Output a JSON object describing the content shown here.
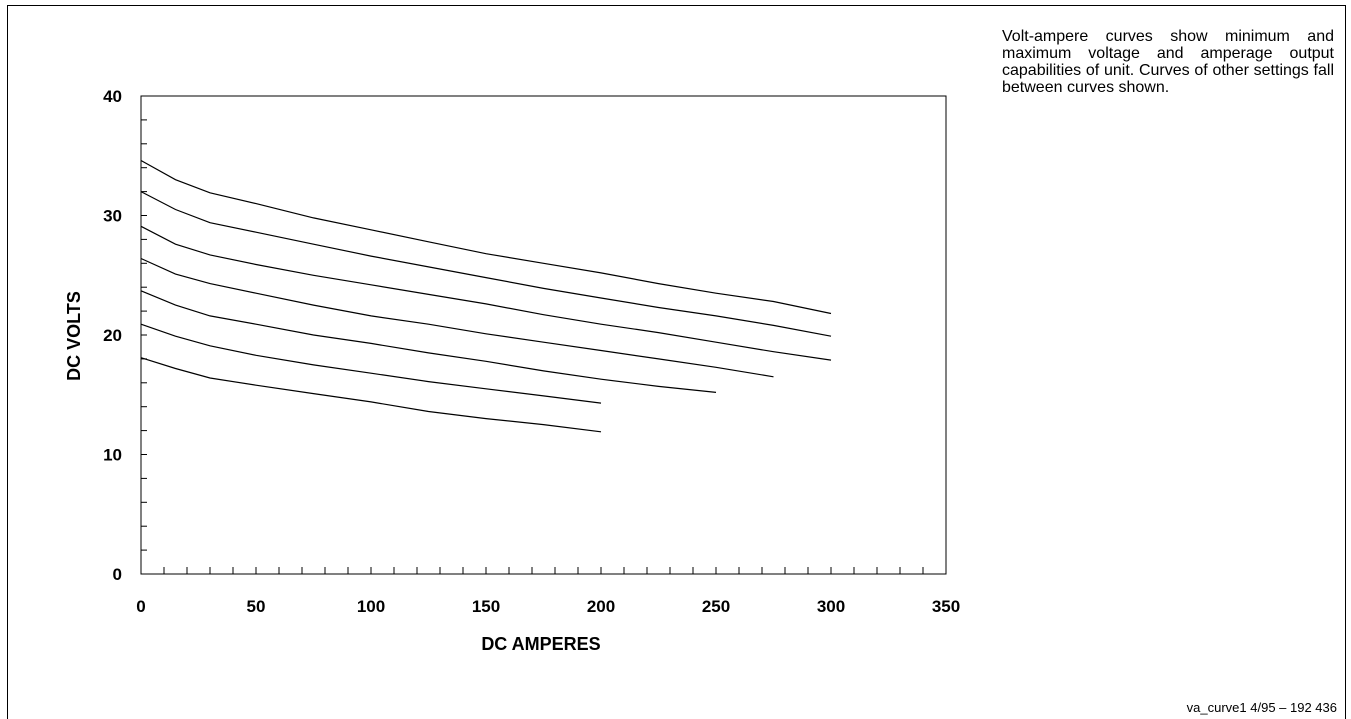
{
  "chart_data": {
    "type": "line",
    "title": "",
    "xlabel": "DC AMPERES",
    "ylabel": "DC VOLTS",
    "xlim": [
      0,
      350
    ],
    "ylim": [
      0,
      40
    ],
    "x_ticks": [
      0,
      50,
      100,
      150,
      200,
      250,
      300,
      350
    ],
    "y_ticks": [
      0,
      10,
      20,
      30,
      40
    ],
    "grid": false,
    "legend": "none",
    "line_color": "#000000",
    "series": [
      {
        "points": [
          [
            0,
            34.6
          ],
          [
            15,
            33.0
          ],
          [
            30,
            31.9
          ],
          [
            50,
            31.0
          ],
          [
            75,
            29.8
          ],
          [
            100,
            28.8
          ],
          [
            125,
            27.8
          ],
          [
            150,
            26.8
          ],
          [
            175,
            26.0
          ],
          [
            200,
            25.2
          ],
          [
            225,
            24.3
          ],
          [
            250,
            23.5
          ],
          [
            275,
            22.8
          ],
          [
            300,
            21.8
          ]
        ]
      },
      {
        "points": [
          [
            0,
            32.0
          ],
          [
            15,
            30.5
          ],
          [
            30,
            29.4
          ],
          [
            50,
            28.6
          ],
          [
            75,
            27.6
          ],
          [
            100,
            26.6
          ],
          [
            125,
            25.7
          ],
          [
            150,
            24.8
          ],
          [
            175,
            23.9
          ],
          [
            200,
            23.1
          ],
          [
            225,
            22.3
          ],
          [
            250,
            21.6
          ],
          [
            275,
            20.8
          ],
          [
            300,
            19.9
          ]
        ]
      },
      {
        "points": [
          [
            0,
            29.1
          ],
          [
            15,
            27.6
          ],
          [
            30,
            26.7
          ],
          [
            50,
            25.9
          ],
          [
            75,
            25.0
          ],
          [
            100,
            24.2
          ],
          [
            125,
            23.4
          ],
          [
            150,
            22.6
          ],
          [
            175,
            21.7
          ],
          [
            200,
            20.9
          ],
          [
            225,
            20.2
          ],
          [
            250,
            19.4
          ],
          [
            275,
            18.6
          ],
          [
            300,
            17.9
          ]
        ]
      },
      {
        "points": [
          [
            0,
            26.4
          ],
          [
            15,
            25.1
          ],
          [
            30,
            24.3
          ],
          [
            50,
            23.5
          ],
          [
            75,
            22.5
          ],
          [
            100,
            21.6
          ],
          [
            125,
            20.9
          ],
          [
            150,
            20.1
          ],
          [
            175,
            19.4
          ],
          [
            200,
            18.7
          ],
          [
            225,
            18.0
          ],
          [
            250,
            17.3
          ],
          [
            275,
            16.5
          ]
        ]
      },
      {
        "points": [
          [
            0,
            23.7
          ],
          [
            15,
            22.5
          ],
          [
            30,
            21.6
          ],
          [
            50,
            20.9
          ],
          [
            75,
            20.0
          ],
          [
            100,
            19.3
          ],
          [
            125,
            18.5
          ],
          [
            150,
            17.8
          ],
          [
            175,
            17.0
          ],
          [
            200,
            16.3
          ],
          [
            225,
            15.7
          ],
          [
            250,
            15.2
          ]
        ]
      },
      {
        "points": [
          [
            0,
            20.9
          ],
          [
            15,
            19.9
          ],
          [
            30,
            19.1
          ],
          [
            50,
            18.3
          ],
          [
            75,
            17.5
          ],
          [
            100,
            16.8
          ],
          [
            125,
            16.1
          ],
          [
            150,
            15.5
          ],
          [
            175,
            14.9
          ],
          [
            200,
            14.3
          ]
        ]
      },
      {
        "points": [
          [
            0,
            18.1
          ],
          [
            15,
            17.2
          ],
          [
            30,
            16.4
          ],
          [
            50,
            15.8
          ],
          [
            75,
            15.1
          ],
          [
            100,
            14.4
          ],
          [
            125,
            13.6
          ],
          [
            150,
            13.0
          ],
          [
            175,
            12.5
          ],
          [
            200,
            11.9
          ]
        ]
      }
    ]
  },
  "description": "Volt-ampere curves show minimum and maximum voltage and amperage output capabilities of unit. Curves of other settings fall between curves shown.",
  "footer": "va_curve1 4/95 – 192 436"
}
